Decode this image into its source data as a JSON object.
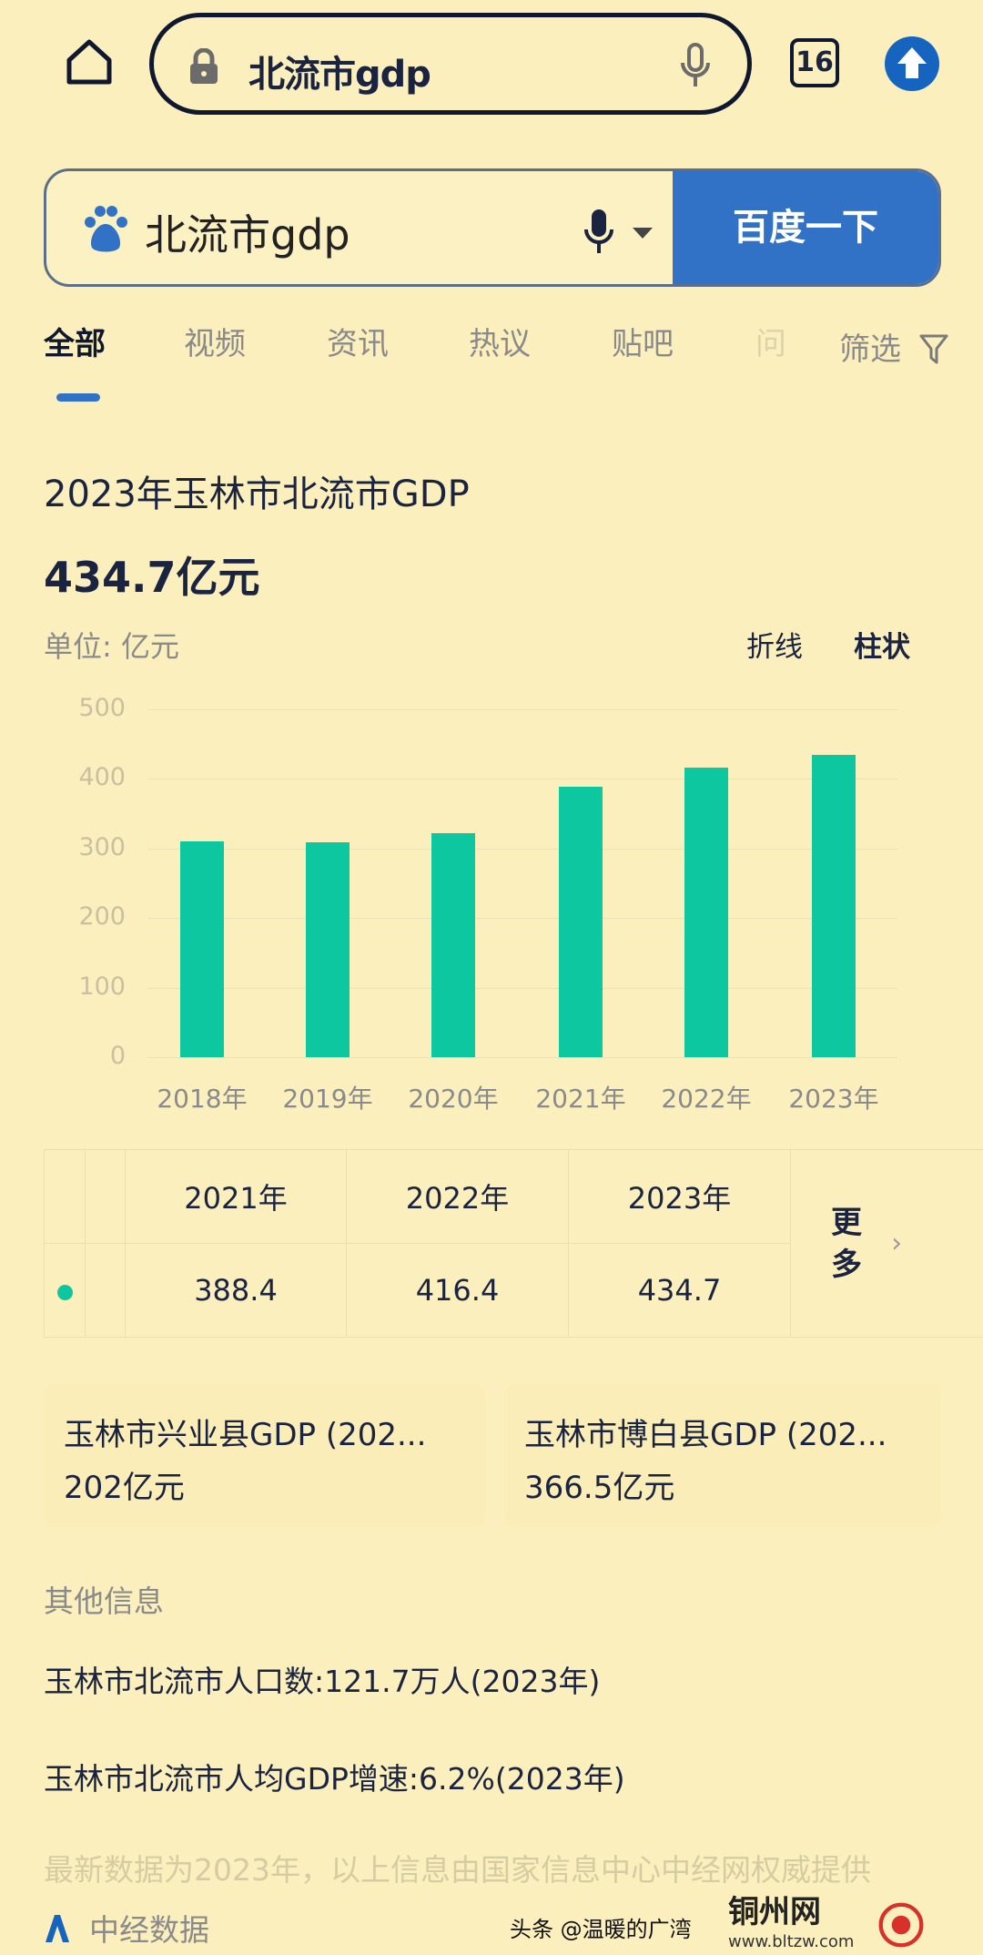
{
  "browser": {
    "url_text": "北流市gdp",
    "tab_count": "16"
  },
  "search": {
    "query": "北流市gdp",
    "button": "百度一下"
  },
  "tabs": [
    "全部",
    "视频",
    "资讯",
    "热议",
    "贴吧",
    "问"
  ],
  "filter_label": "筛选",
  "result": {
    "title": "2023年玉林市北流市GDP",
    "value": "434.7亿元",
    "unit": "单位: 亿元",
    "toggle": {
      "line": "折线",
      "bar": "柱状"
    }
  },
  "chart_data": {
    "type": "bar",
    "categories": [
      "2018年",
      "2019年",
      "2020年",
      "2021年",
      "2022年",
      "2023年"
    ],
    "values": [
      310,
      309,
      322,
      388.4,
      416.4,
      434.7
    ],
    "yticks": [
      "0",
      "100",
      "200",
      "300",
      "400",
      "500"
    ],
    "ylim": [
      0,
      500
    ],
    "color": "#0dc7a1"
  },
  "table": {
    "headers": [
      "2021年",
      "2022年",
      "2023年"
    ],
    "values": [
      "388.4",
      "416.4",
      "434.7"
    ],
    "more": "更多"
  },
  "related": [
    {
      "title": "玉林市兴业县GDP (202...",
      "value": "202亿元"
    },
    {
      "title": "玉林市博白县GDP (202...",
      "value": "366.5亿元"
    }
  ],
  "other": {
    "heading": "其他信息",
    "items": [
      "玉林市北流市人口数:121.7万人(2023年)",
      "玉林市北流市人均GDP增速:6.2%(2023年)"
    ]
  },
  "footnote": "最新数据为2023年，以上信息由国家信息中心中经网权威提供",
  "source": "中经数据",
  "watermark": {
    "text": "头条 @温暖的广湾",
    "logo": "铜州网",
    "site": "www.bltzw.com"
  }
}
